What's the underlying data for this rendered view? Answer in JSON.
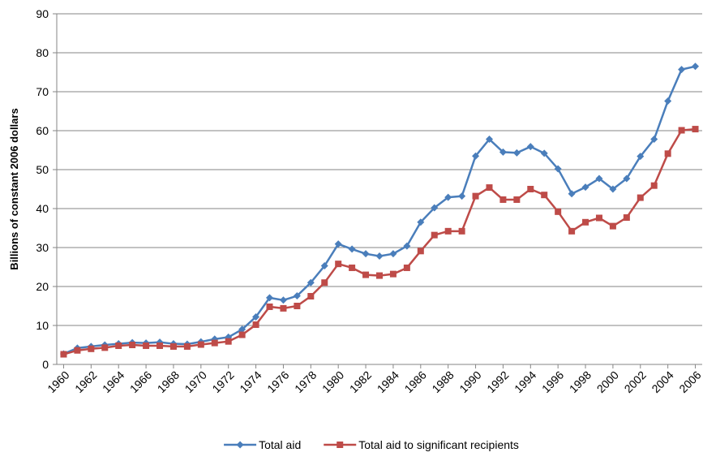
{
  "chart_data": {
    "type": "line",
    "y_label": "Billions of constant 2006 dollars",
    "x": [
      1960,
      1961,
      1962,
      1963,
      1964,
      1965,
      1966,
      1967,
      1968,
      1969,
      1970,
      1971,
      1972,
      1973,
      1974,
      1975,
      1976,
      1977,
      1978,
      1979,
      1980,
      1981,
      1982,
      1983,
      1984,
      1985,
      1986,
      1987,
      1988,
      1989,
      1990,
      1991,
      1992,
      1993,
      1994,
      1995,
      1996,
      1997,
      1998,
      1999,
      2000,
      2001,
      2002,
      2003,
      2004,
      2005,
      2006
    ],
    "xlim": [
      1959.5,
      2006.5
    ],
    "xticks": [
      1960,
      1962,
      1964,
      1966,
      1968,
      1970,
      1972,
      1974,
      1976,
      1978,
      1980,
      1982,
      1984,
      1986,
      1988,
      1990,
      1992,
      1994,
      1996,
      1998,
      2000,
      2002,
      2004,
      2006
    ],
    "ylim": [
      0,
      90
    ],
    "yticks": [
      0,
      10,
      20,
      30,
      40,
      50,
      60,
      70,
      80,
      90
    ],
    "grid": true,
    "legend": "bottom",
    "series": [
      {
        "name": "Total aid",
        "color": "#4a7ebb",
        "marker": "diamond",
        "values": [
          2.7,
          4.2,
          4.6,
          5.0,
          5.3,
          5.6,
          5.5,
          5.7,
          5.3,
          5.2,
          5.8,
          6.5,
          7.0,
          9.0,
          12.2,
          17.1,
          16.5,
          17.6,
          21.0,
          25.3,
          30.9,
          29.6,
          28.4,
          27.8,
          28.4,
          30.4,
          36.5,
          40.2,
          42.9,
          43.2,
          53.5,
          57.8,
          54.5,
          54.3,
          55.9,
          54.2,
          50.2,
          43.8,
          45.5,
          47.7,
          45.0,
          47.7,
          53.4,
          57.8,
          67.6,
          75.7,
          76.5
        ]
      },
      {
        "name": "Total aid to significant recipients",
        "color": "#be4b48",
        "marker": "square",
        "values": [
          2.6,
          3.6,
          4.0,
          4.3,
          4.8,
          5.0,
          4.8,
          4.8,
          4.6,
          4.6,
          5.1,
          5.5,
          5.9,
          7.6,
          10.2,
          14.8,
          14.4,
          15.0,
          17.5,
          21.0,
          25.8,
          24.8,
          23.0,
          22.8,
          23.2,
          24.8,
          29.1,
          33.2,
          34.2,
          34.2,
          43.2,
          45.4,
          42.3,
          42.3,
          45.0,
          43.5,
          39.2,
          34.2,
          36.5,
          37.6,
          35.5,
          37.7,
          42.8,
          45.9,
          54.1,
          60.1,
          60.4
        ]
      }
    ]
  }
}
